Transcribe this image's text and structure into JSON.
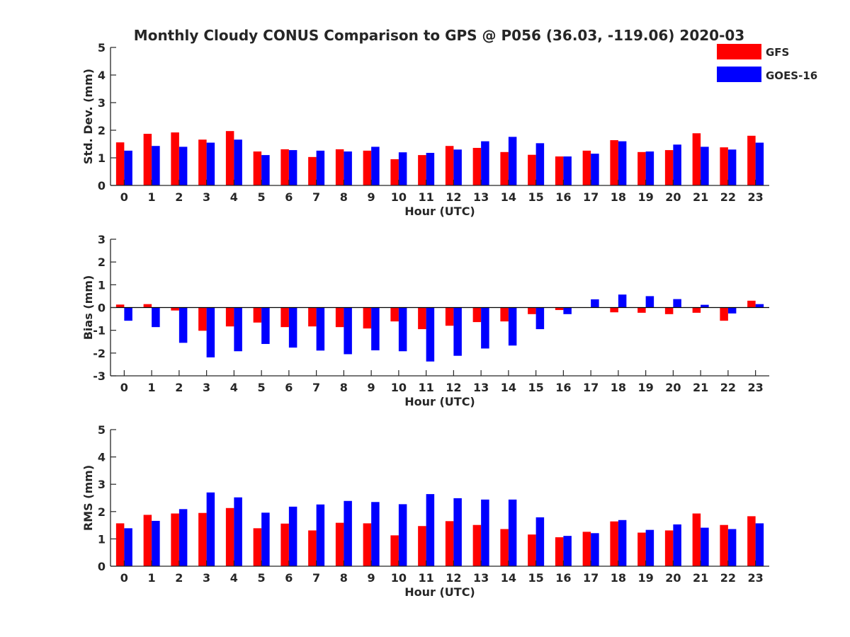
{
  "figure": {
    "title": "Monthly Cloudy CONUS Comparison to GPS @ P056 (36.03, -119.06) 2020-03"
  },
  "legend": {
    "placement": "top-right",
    "entries": [
      {
        "name": "GFS",
        "color": "#ff0000"
      },
      {
        "name": "GOES-16",
        "color": "#0000ff"
      }
    ]
  },
  "chart_data": [
    {
      "type": "bar",
      "xlabel": "Hour (UTC)",
      "ylabel": "Std. Dev. (mm)",
      "ylim": [
        0,
        5
      ],
      "yticks": [
        0,
        1,
        2,
        3,
        4,
        5
      ],
      "categories": [
        "0",
        "1",
        "2",
        "3",
        "4",
        "5",
        "6",
        "7",
        "8",
        "9",
        "10",
        "11",
        "12",
        "13",
        "14",
        "15",
        "16",
        "17",
        "18",
        "19",
        "20",
        "21",
        "22",
        "23"
      ],
      "series": [
        {
          "name": "GFS",
          "color": "#ff0000",
          "values": [
            1.56,
            1.87,
            1.92,
            1.66,
            1.97,
            1.23,
            1.31,
            1.03,
            1.31,
            1.26,
            0.95,
            1.1,
            1.43,
            1.36,
            1.21,
            1.11,
            1.05,
            1.26,
            1.64,
            1.21,
            1.28,
            1.89,
            1.38,
            1.8
          ]
        },
        {
          "name": "GOES-16",
          "color": "#0000ff",
          "values": [
            1.26,
            1.43,
            1.4,
            1.55,
            1.66,
            1.1,
            1.28,
            1.26,
            1.23,
            1.4,
            1.2,
            1.18,
            1.3,
            1.6,
            1.76,
            1.53,
            1.05,
            1.15,
            1.6,
            1.23,
            1.48,
            1.4,
            1.3,
            1.55
          ]
        }
      ]
    },
    {
      "type": "bar",
      "xlabel": "Hour (UTC)",
      "ylabel": "Bias (mm)",
      "ylim": [
        -3,
        3
      ],
      "yticks": [
        -3,
        -2,
        -1,
        0,
        1,
        2,
        3
      ],
      "categories": [
        "0",
        "1",
        "2",
        "3",
        "4",
        "5",
        "6",
        "7",
        "8",
        "9",
        "10",
        "11",
        "12",
        "13",
        "14",
        "15",
        "16",
        "17",
        "18",
        "19",
        "20",
        "21",
        "22",
        "23"
      ],
      "series": [
        {
          "name": "GFS",
          "color": "#ff0000",
          "values": [
            0.13,
            0.15,
            -0.13,
            -1.02,
            -0.83,
            -0.66,
            -0.86,
            -0.83,
            -0.86,
            -0.92,
            -0.61,
            -0.95,
            -0.8,
            -0.64,
            -0.61,
            -0.29,
            -0.11,
            0.0,
            -0.21,
            -0.23,
            -0.29,
            -0.23,
            -0.58,
            0.3
          ]
        },
        {
          "name": "GOES-16",
          "color": "#0000ff",
          "values": [
            -0.58,
            -0.86,
            -1.55,
            -2.19,
            -1.92,
            -1.6,
            -1.76,
            -1.89,
            -2.05,
            -1.88,
            -1.92,
            -2.37,
            -2.12,
            -1.8,
            -1.67,
            -0.95,
            -0.29,
            0.36,
            0.57,
            0.5,
            0.37,
            0.12,
            -0.26,
            0.15
          ]
        }
      ]
    },
    {
      "type": "bar",
      "xlabel": "Hour (UTC)",
      "ylabel": "RMS (mm)",
      "ylim": [
        0,
        5
      ],
      "yticks": [
        0,
        1,
        2,
        3,
        4,
        5
      ],
      "categories": [
        "0",
        "1",
        "2",
        "3",
        "4",
        "5",
        "6",
        "7",
        "8",
        "9",
        "10",
        "11",
        "12",
        "13",
        "14",
        "15",
        "16",
        "17",
        "18",
        "19",
        "20",
        "21",
        "22",
        "23"
      ],
      "series": [
        {
          "name": "GFS",
          "color": "#ff0000",
          "values": [
            1.57,
            1.88,
            1.93,
            1.95,
            2.13,
            1.39,
            1.56,
            1.31,
            1.59,
            1.57,
            1.13,
            1.47,
            1.65,
            1.51,
            1.36,
            1.16,
            1.06,
            1.26,
            1.64,
            1.23,
            1.31,
            1.93,
            1.51,
            1.83
          ]
        },
        {
          "name": "GOES-16",
          "color": "#0000ff",
          "values": [
            1.39,
            1.66,
            2.09,
            2.7,
            2.52,
            1.96,
            2.18,
            2.26,
            2.39,
            2.35,
            2.27,
            2.64,
            2.49,
            2.44,
            2.44,
            1.79,
            1.11,
            1.21,
            1.69,
            1.33,
            1.53,
            1.41,
            1.36,
            1.57
          ]
        }
      ]
    }
  ]
}
